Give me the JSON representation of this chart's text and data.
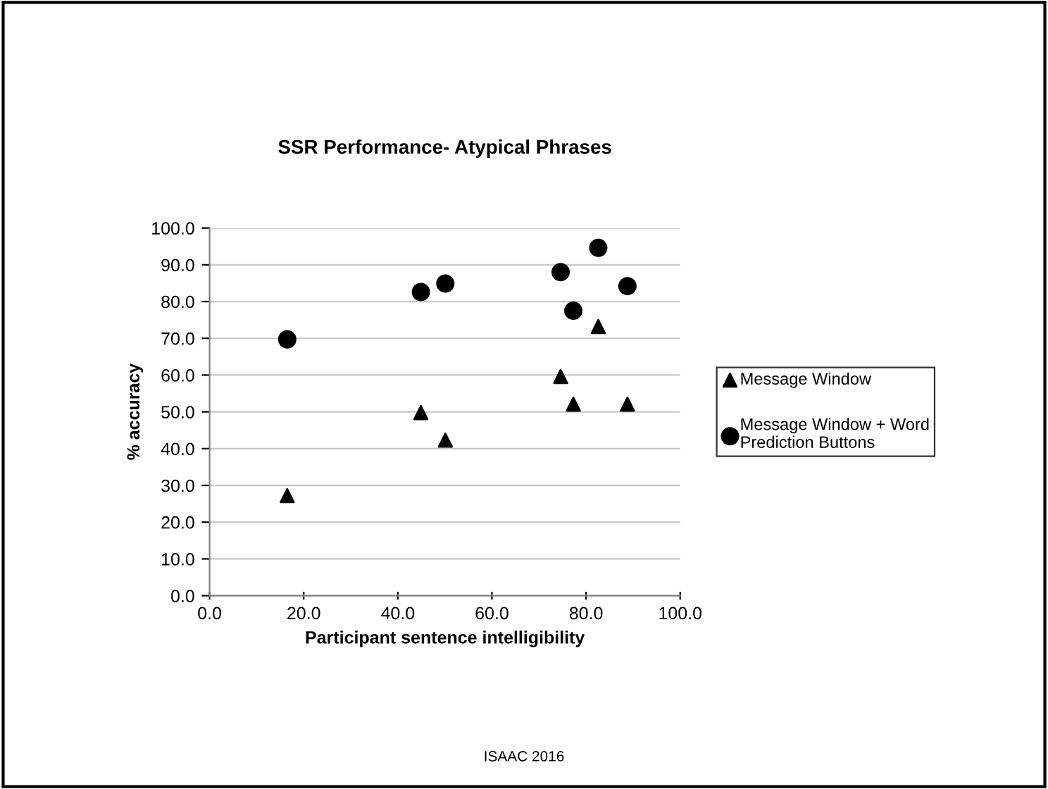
{
  "chart_data": {
    "type": "scatter",
    "title": "SSR Performance- Atypical Phrases",
    "xlabel": "Participant sentence intelligibility",
    "ylabel": "% accuracy",
    "x": [
      16.5,
      44.9,
      50.1,
      74.6,
      77.3,
      82.6,
      88.8
    ],
    "series": [
      {
        "name": "Message Window",
        "color": "#000000",
        "marker": "triangle",
        "values": [
          27.2,
          49.8,
          42.3,
          59.6,
          52.1,
          73.2,
          52.1
        ]
      },
      {
        "name": "Message Window + Word\nPrediction Buttons",
        "color": "#000000",
        "marker": "circle",
        "values": [
          69.7,
          82.6,
          84.9,
          88.0,
          77.5,
          94.6,
          84.2
        ]
      }
    ],
    "xlim": [
      0,
      100
    ],
    "xticks": [
      {
        "value": 0,
        "label": "0.0"
      },
      {
        "value": 20,
        "label": "20.0"
      },
      {
        "value": 40,
        "label": "40.0"
      },
      {
        "value": 60,
        "label": "60.0"
      },
      {
        "value": 80,
        "label": "80.0"
      },
      {
        "value": 100,
        "label": "100.0"
      }
    ],
    "ylim": [
      0,
      100
    ],
    "yticks": [
      {
        "value": 0,
        "label": "0.0"
      },
      {
        "value": 10,
        "label": "10.0"
      },
      {
        "value": 20,
        "label": "20.0"
      },
      {
        "value": 30,
        "label": "30.0"
      },
      {
        "value": 40,
        "label": "40.0"
      },
      {
        "value": 50,
        "label": "50.0"
      },
      {
        "value": 60,
        "label": "60.0"
      },
      {
        "value": 70,
        "label": "70.0"
      },
      {
        "value": 80,
        "label": "80.0"
      },
      {
        "value": 90,
        "label": "90.0"
      },
      {
        "value": 100,
        "label": "100.0"
      }
    ],
    "grid": "y",
    "legend": "right",
    "annotations": [
      "ISAAC 2016"
    ]
  }
}
